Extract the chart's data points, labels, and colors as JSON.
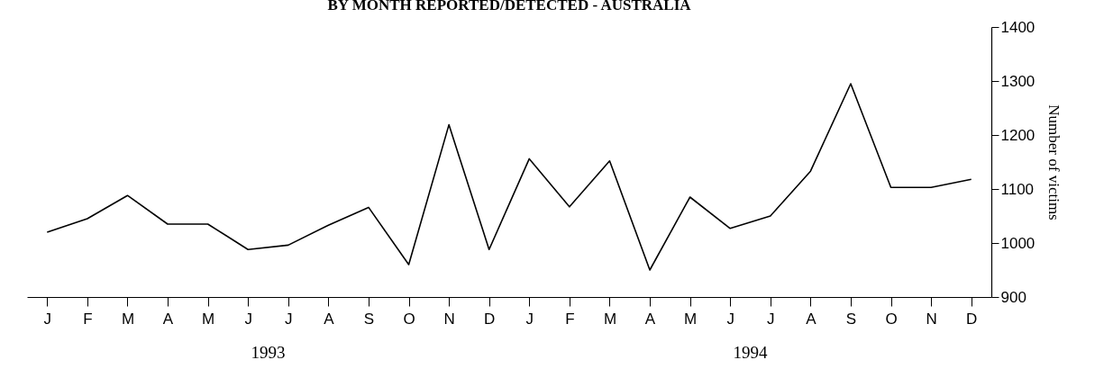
{
  "chart_data": {
    "type": "line",
    "title": "BY MONTH REPORTED/DETECTED - AUSTRALIA",
    "ylabel": "Number of victims",
    "categories": [
      "J",
      "F",
      "M",
      "A",
      "M",
      "J",
      "J",
      "A",
      "S",
      "O",
      "N",
      "D",
      "J",
      "F",
      "M",
      "A",
      "M",
      "J",
      "J",
      "A",
      "S",
      "O",
      "N",
      "D"
    ],
    "series": [
      {
        "color": "#000000",
        "values": [
          1020,
          1045,
          1088,
          1035,
          1035,
          988,
          996,
          1033,
          1066,
          960,
          1219,
          988,
          1156,
          1067,
          1152,
          950,
          1085,
          1027,
          1050,
          1133,
          1295,
          1103,
          1103,
          1118
        ]
      }
    ],
    "ylim": [
      900,
      1400
    ],
    "yticks": [
      900,
      1000,
      1100,
      1200,
      1300,
      1400
    ],
    "grid": false,
    "legend": false,
    "marker": "none",
    "line_style": "solid",
    "annotations": [
      "1993",
      "1994"
    ]
  }
}
